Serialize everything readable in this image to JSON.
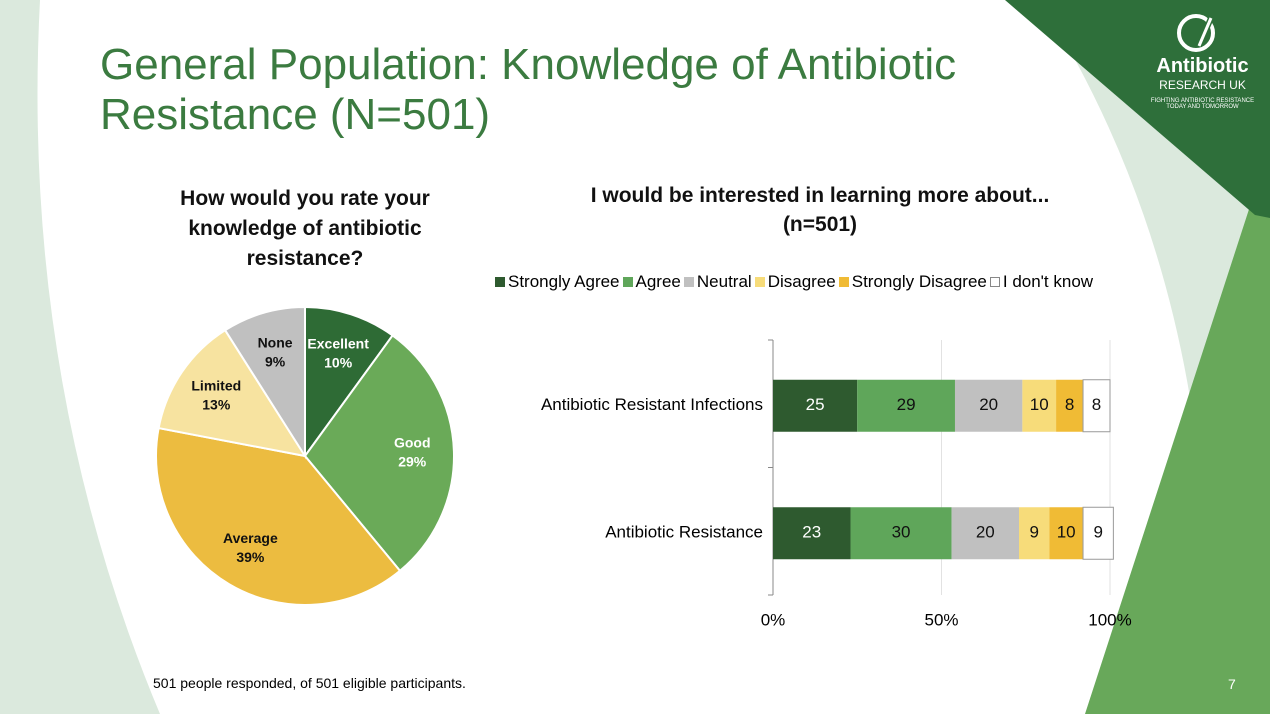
{
  "slide": {
    "title": "General Population: Knowledge of Antibiotic Resistance (N=501)",
    "footnote": "501 people responded, of 501 eligible participants.",
    "page_number": 7,
    "logo": {
      "name": "Antibiotic",
      "subname": "RESEARCH UK",
      "tagline": "FIGHTING ANTIBIOTIC RESISTANCE",
      "tagline2": "TODAY AND TOMORROW"
    }
  },
  "chart_data": [
    {
      "type": "pie",
      "title": "How would you rate your knowledge of antibiotic resistance?",
      "categories": [
        "Excellent",
        "Good",
        "Average",
        "Limited",
        "None"
      ],
      "values": [
        10,
        29,
        39,
        13,
        9
      ],
      "value_labels": [
        "10%",
        "29%",
        "39%",
        "13%",
        "9%"
      ],
      "colors": [
        "#2e6b35",
        "#6aaa58",
        "#ecbc40",
        "#f7e3a0",
        "#c0c0c0"
      ]
    },
    {
      "type": "stacked-barh",
      "title": "I would be interested in learning more about...",
      "subtitle": "(n=501)",
      "categories": [
        "Antibiotic Resistant Infections",
        "Antibiotic Resistance"
      ],
      "series": [
        {
          "name": "Strongly Agree",
          "color": "#2e5a2f",
          "values": [
            25,
            23
          ]
        },
        {
          "name": "Agree",
          "color": "#5fa65a",
          "values": [
            29,
            30
          ]
        },
        {
          "name": "Neutral",
          "color": "#c0c0c0",
          "values": [
            20,
            20
          ]
        },
        {
          "name": "Disagree",
          "color": "#f7dc7a",
          "values": [
            10,
            9
          ]
        },
        {
          "name": "Strongly Disagree",
          "color": "#f0bb35",
          "values": [
            8,
            10
          ]
        },
        {
          "name": "I don't know",
          "color": "#ffffff",
          "values": [
            8,
            9
          ]
        }
      ],
      "xlim": [
        0,
        100
      ],
      "xticks": [
        {
          "value": 0,
          "label": "0%"
        },
        {
          "value": 50,
          "label": "50%"
        },
        {
          "value": 100,
          "label": "100%"
        }
      ],
      "grid": true,
      "legend": "top"
    }
  ]
}
